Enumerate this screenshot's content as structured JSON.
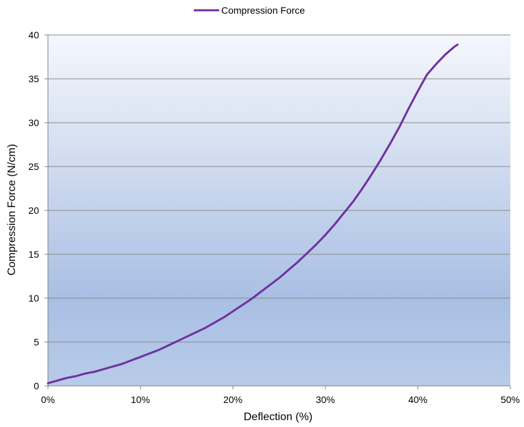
{
  "chart_data": {
    "type": "line",
    "title": "",
    "xlabel": "Deflection (%)",
    "ylabel": "Compression Force (N/cm)",
    "xlim": [
      0,
      50
    ],
    "ylim": [
      0,
      40
    ],
    "x_ticks": [
      "0%",
      "10%",
      "20%",
      "30%",
      "40%",
      "50%"
    ],
    "x_tick_values": [
      0,
      10,
      20,
      30,
      40,
      50
    ],
    "y_ticks": [
      "0",
      "5",
      "10",
      "15",
      "20",
      "25",
      "30",
      "35",
      "40"
    ],
    "y_tick_values": [
      0,
      5,
      10,
      15,
      20,
      25,
      30,
      35,
      40
    ],
    "grid": "horizontal",
    "legend_position": "top-center",
    "background": "blue-gradient",
    "series": [
      {
        "name": "Compression Force",
        "color": "#7030A0",
        "x": [
          0,
          1,
          2,
          3,
          4,
          5,
          6,
          7,
          8,
          9,
          10,
          11,
          12,
          13,
          14,
          15,
          16,
          17,
          18,
          19,
          20,
          21,
          22,
          23,
          24,
          25,
          26,
          27,
          28,
          29,
          30,
          31,
          32,
          33,
          34,
          35,
          36,
          37,
          38,
          39,
          40,
          41,
          42,
          43,
          44,
          44.3
        ],
        "y": [
          0.3,
          0.6,
          0.9,
          1.1,
          1.4,
          1.6,
          1.9,
          2.2,
          2.5,
          2.9,
          3.3,
          3.7,
          4.1,
          4.6,
          5.1,
          5.6,
          6.1,
          6.6,
          7.2,
          7.8,
          8.5,
          9.2,
          9.9,
          10.7,
          11.5,
          12.3,
          13.2,
          14.1,
          15.1,
          16.1,
          17.2,
          18.4,
          19.7,
          21.0,
          22.5,
          24.1,
          25.8,
          27.6,
          29.5,
          31.6,
          33.6,
          35.5,
          36.7,
          37.8,
          38.7,
          38.9
        ]
      }
    ]
  }
}
